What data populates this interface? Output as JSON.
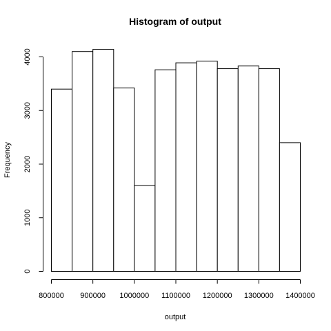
{
  "chart_data": {
    "type": "bar",
    "title": "Histogram of output",
    "xlabel": "output",
    "ylabel": "Frequency",
    "bins": [
      {
        "start": 800000,
        "end": 850000,
        "value": 3400
      },
      {
        "start": 850000,
        "end": 900000,
        "value": 4100
      },
      {
        "start": 900000,
        "end": 950000,
        "value": 4140
      },
      {
        "start": 950000,
        "end": 1000000,
        "value": 3420
      },
      {
        "start": 1000000,
        "end": 1050000,
        "value": 1600
      },
      {
        "start": 1050000,
        "end": 1100000,
        "value": 3760
      },
      {
        "start": 1100000,
        "end": 1150000,
        "value": 3890
      },
      {
        "start": 1150000,
        "end": 1200000,
        "value": 3920
      },
      {
        "start": 1200000,
        "end": 1250000,
        "value": 3780
      },
      {
        "start": 1250000,
        "end": 1300000,
        "value": 3830
      },
      {
        "start": 1300000,
        "end": 1350000,
        "value": 3780
      },
      {
        "start": 1350000,
        "end": 1400000,
        "value": 2400
      }
    ],
    "xlim": [
      800000,
      1400000
    ],
    "ylim": [
      0,
      4000
    ],
    "x_ticks": [
      800000,
      900000,
      1000000,
      1100000,
      1200000,
      1300000,
      1400000
    ],
    "x_tick_labels": [
      "800000",
      "900000",
      "1000000",
      "1100000",
      "1200000",
      "1300000",
      "1400000"
    ],
    "y_ticks": [
      0,
      1000,
      2000,
      3000,
      4000
    ],
    "y_tick_labels": [
      "0",
      "1000",
      "2000",
      "3000",
      "4000"
    ],
    "grid": false,
    "legend": "none"
  }
}
